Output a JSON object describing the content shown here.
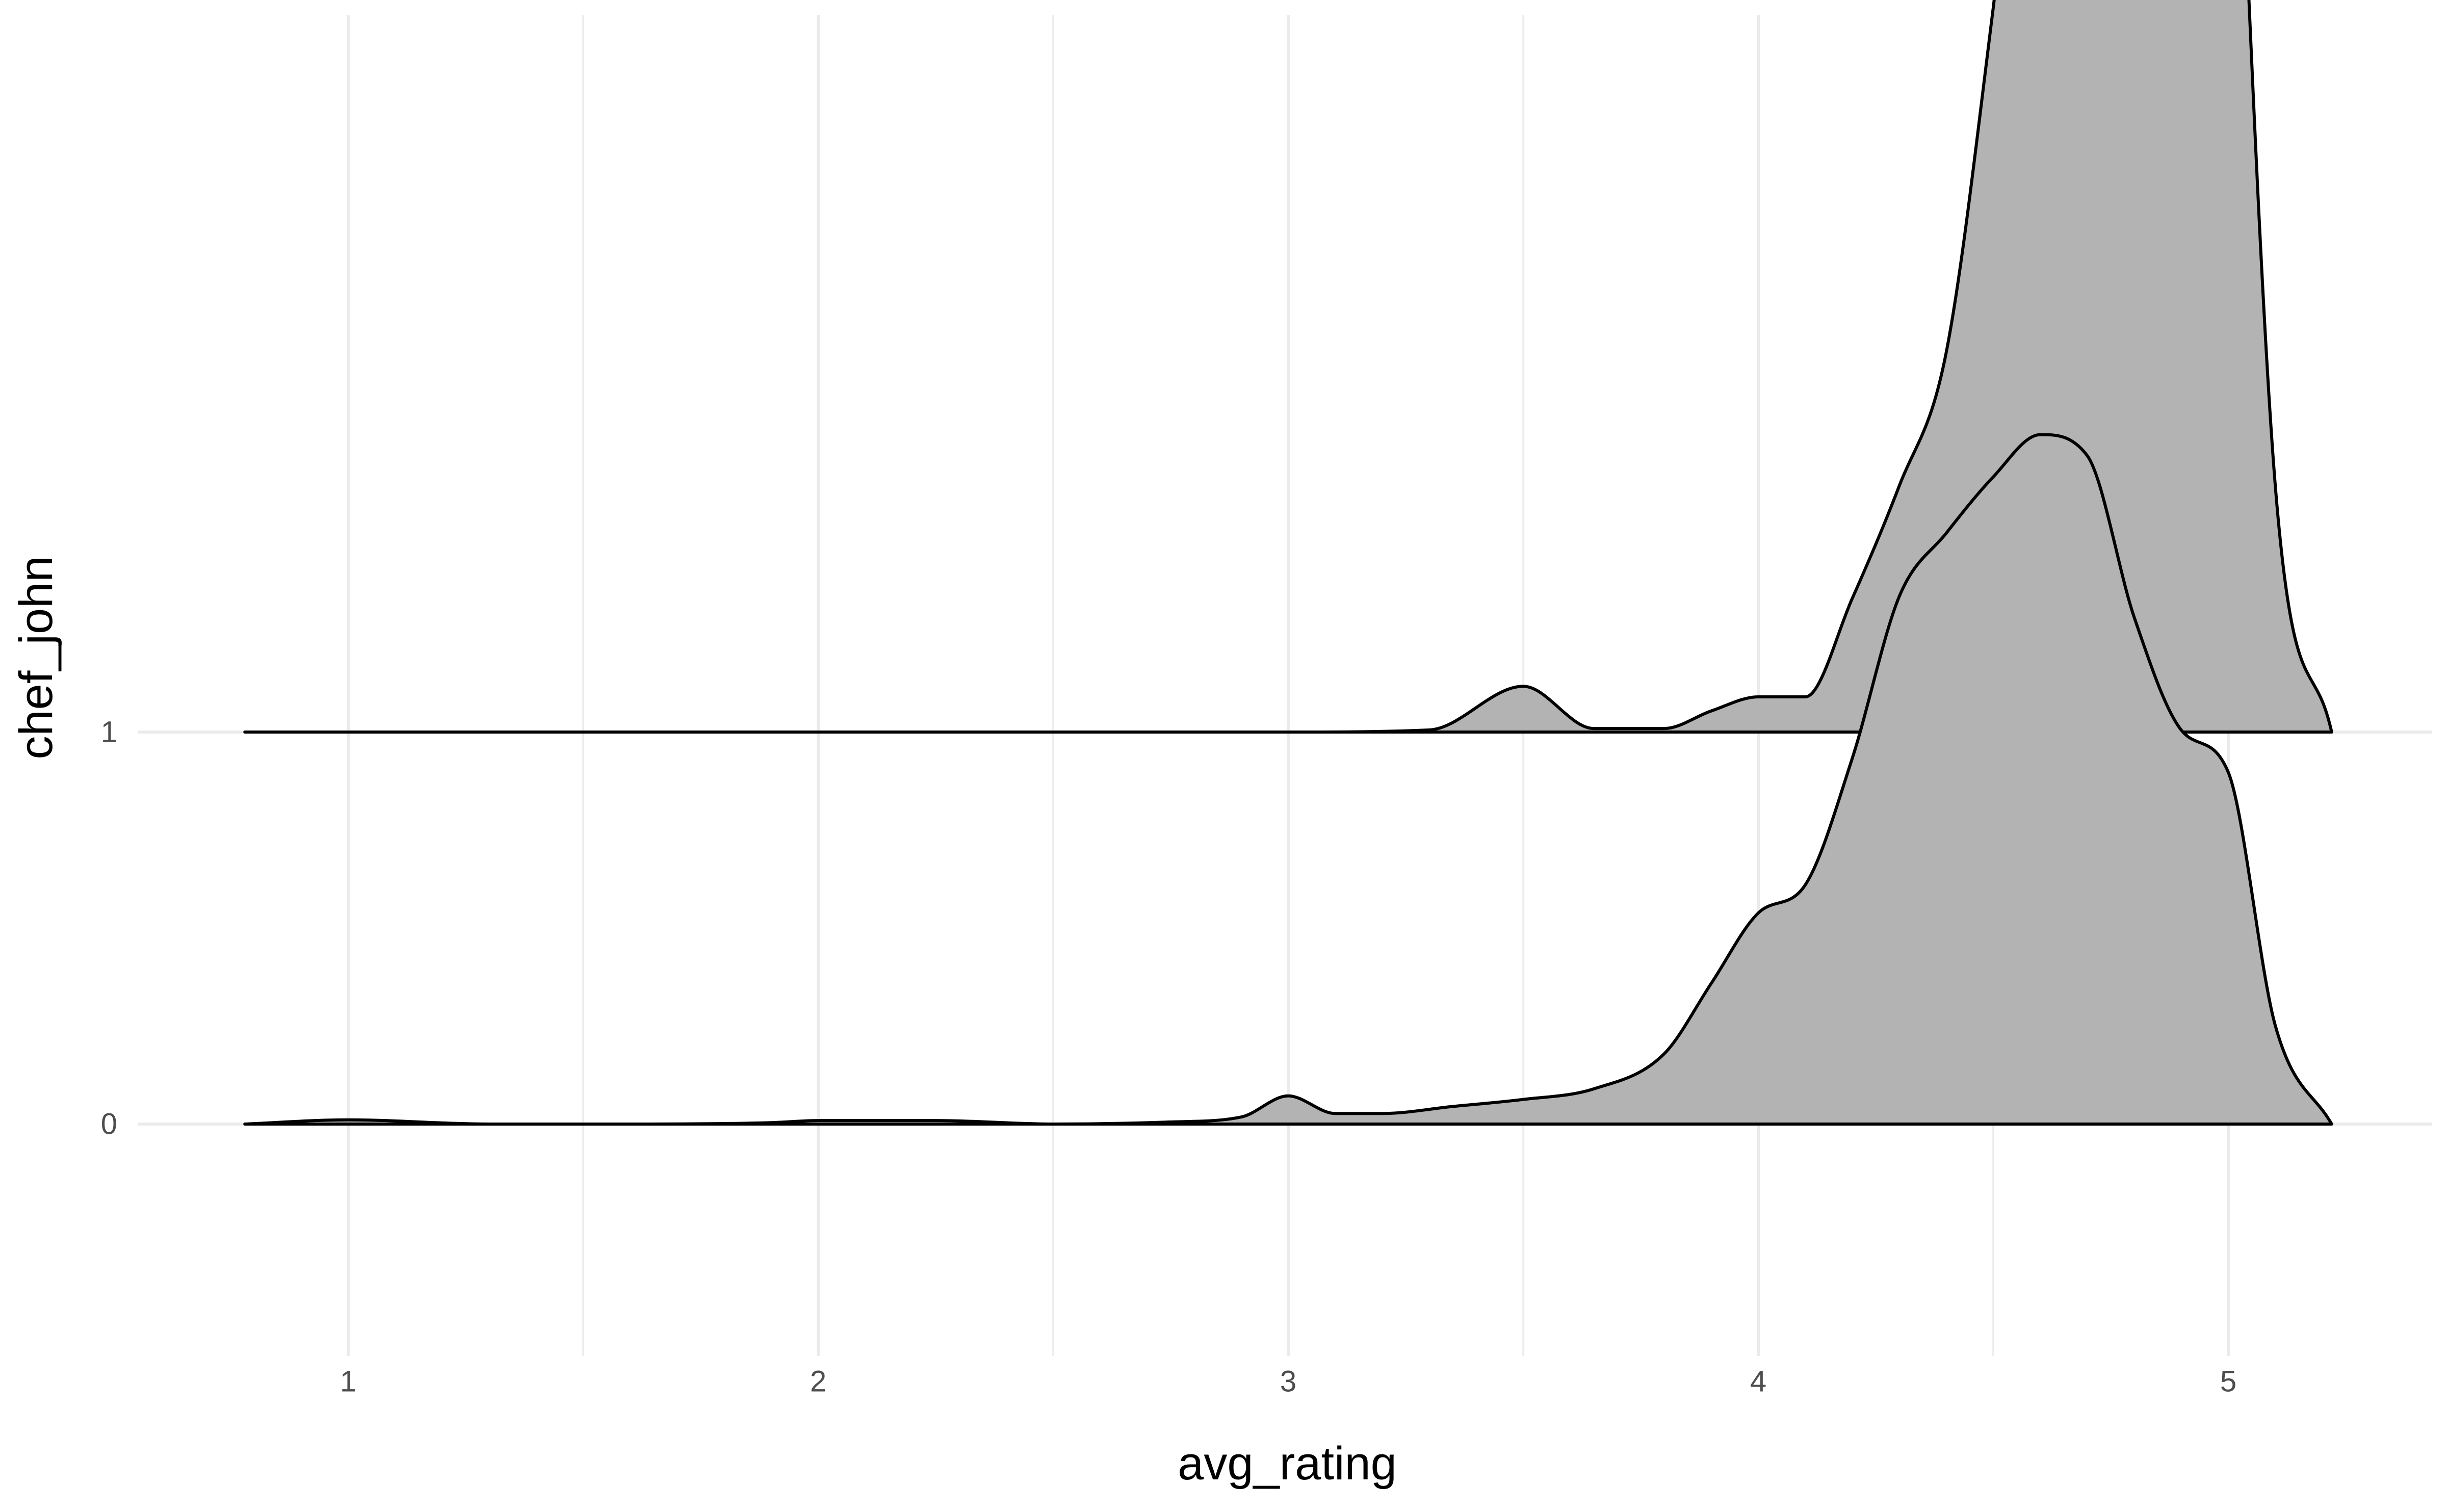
{
  "chart_data": {
    "type": "area",
    "subtype": "density-ridgeline",
    "xlabel": "avg_rating",
    "ylabel": "chef_john",
    "xlim": [
      0.78,
      5.22
    ],
    "x_ticks": [
      1,
      2,
      3,
      4,
      5
    ],
    "x_tick_labels": [
      "1",
      "2",
      "3",
      "4",
      "5"
    ],
    "x_minor_ticks": [
      1.5,
      2.5,
      3.5,
      4.5
    ],
    "categories": [
      "0",
      "1"
    ],
    "grid": true,
    "fill_color": "#b3b3b3",
    "line_color": "#000000",
    "grid_color": "#ebebeb",
    "series": [
      {
        "name": "0",
        "x": [
          0.78,
          1.0,
          1.3,
          1.6,
          1.9,
          2.0,
          2.25,
          2.5,
          2.75,
          2.9,
          3.0,
          3.1,
          3.2,
          3.35,
          3.5,
          3.65,
          3.8,
          3.9,
          4.0,
          4.1,
          4.2,
          4.3,
          4.4,
          4.5,
          4.6,
          4.7,
          4.8,
          4.9,
          5.0,
          5.1,
          5.22
        ],
        "density": [
          0.0,
          0.006,
          0.0,
          0.0,
          0.002,
          0.005,
          0.005,
          0.0,
          0.003,
          0.01,
          0.04,
          0.015,
          0.015,
          0.025,
          0.035,
          0.05,
          0.1,
          0.2,
          0.3,
          0.34,
          0.52,
          0.75,
          0.84,
          0.92,
          0.98,
          0.95,
          0.72,
          0.56,
          0.5,
          0.14,
          0.0
        ]
      },
      {
        "name": "1",
        "x": [
          0.78,
          1.0,
          2.0,
          3.0,
          3.3,
          3.5,
          3.65,
          3.8,
          3.9,
          4.0,
          4.1,
          4.2,
          4.3,
          4.4,
          4.5,
          4.6,
          4.7,
          4.8,
          4.9,
          5.0,
          5.1,
          5.22
        ],
        "density": [
          0.0,
          0.0,
          0.0,
          0.0,
          0.003,
          0.065,
          0.005,
          0.005,
          0.03,
          0.05,
          0.05,
          0.19,
          0.35,
          0.54,
          1.03,
          1.6,
          2.25,
          3.8,
          3.2,
          1.7,
          0.35,
          0.0
        ]
      }
    ]
  }
}
